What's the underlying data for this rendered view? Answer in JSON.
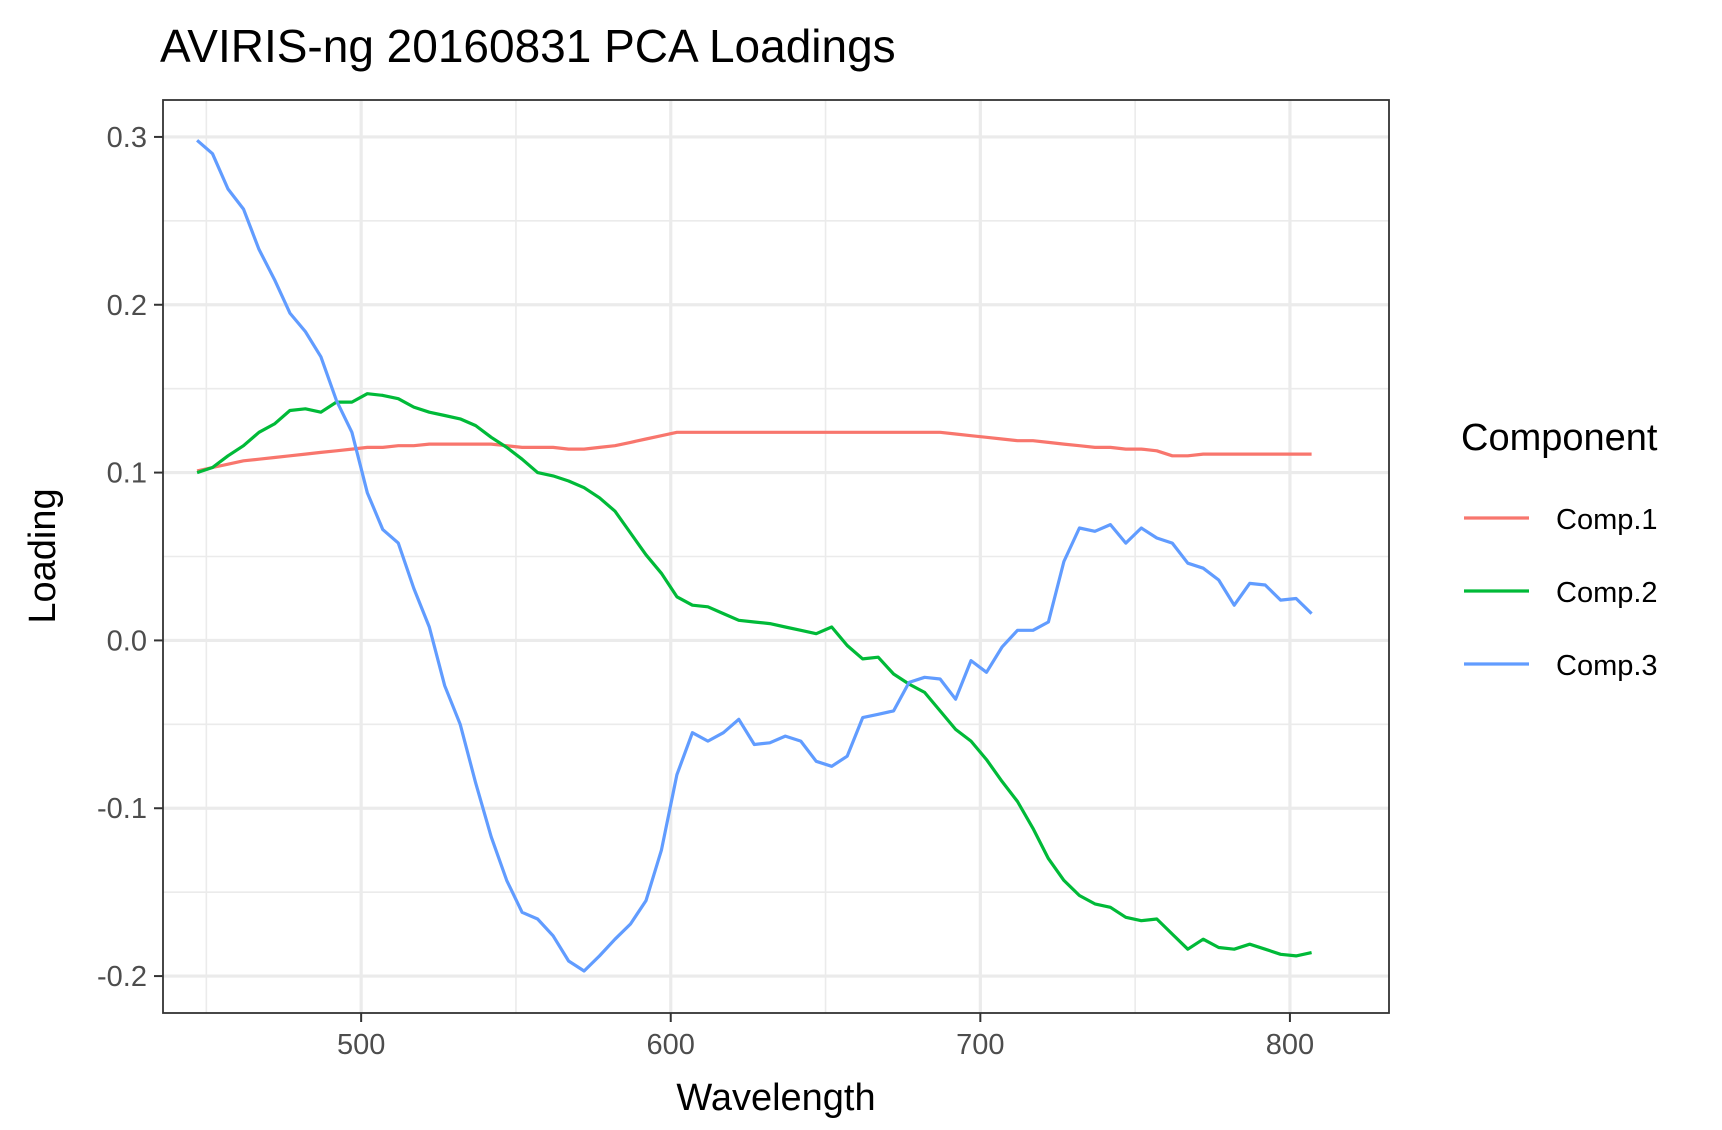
{
  "chart_data": {
    "type": "line",
    "title": "AVIRIS-ng 20160831 PCA Loadings",
    "xlabel": "Wavelength",
    "ylabel": "Loading",
    "xlim": [
      436,
      832
    ],
    "ylim": [
      -0.222,
      0.322
    ],
    "x_ticks": [
      500,
      600,
      700,
      800
    ],
    "x_tick_labels": [
      "500",
      "600",
      "700",
      "800"
    ],
    "x_minor_ticks": [
      450,
      550,
      650,
      750
    ],
    "y_ticks": [
      -0.2,
      -0.1,
      0.0,
      0.1,
      0.2,
      0.3
    ],
    "y_tick_labels": [
      "-0.2",
      "-0.1",
      "0.0",
      "0.1",
      "0.2",
      "0.3"
    ],
    "y_minor_ticks": [
      -0.15,
      -0.05,
      0.05,
      0.15,
      0.25
    ],
    "grid": true,
    "legend_title": "Component",
    "legend_position": "right",
    "series": [
      {
        "name": "Comp.1",
        "color": "#F8766D",
        "x": [
          447,
          452,
          457,
          462,
          467,
          472,
          477,
          482,
          487,
          492,
          497,
          502,
          507,
          512,
          517,
          522,
          527,
          532,
          537,
          542,
          547,
          552,
          557,
          562,
          567,
          572,
          577,
          582,
          587,
          592,
          597,
          602,
          607,
          612,
          617,
          622,
          627,
          632,
          637,
          642,
          647,
          652,
          657,
          662,
          667,
          672,
          677,
          682,
          687,
          692,
          697,
          702,
          707,
          712,
          717,
          722,
          727,
          732,
          737,
          742,
          747,
          752,
          757,
          762,
          767,
          772,
          777,
          782,
          787,
          792,
          797,
          802,
          807
        ],
        "values": [
          0.101,
          0.103,
          0.105,
          0.107,
          0.108,
          0.109,
          0.11,
          0.111,
          0.112,
          0.113,
          0.114,
          0.115,
          0.115,
          0.116,
          0.116,
          0.117,
          0.117,
          0.117,
          0.117,
          0.117,
          0.116,
          0.115,
          0.115,
          0.115,
          0.114,
          0.114,
          0.115,
          0.116,
          0.118,
          0.12,
          0.122,
          0.124,
          0.124,
          0.124,
          0.124,
          0.124,
          0.124,
          0.124,
          0.124,
          0.124,
          0.124,
          0.124,
          0.124,
          0.124,
          0.124,
          0.124,
          0.124,
          0.124,
          0.124,
          0.123,
          0.122,
          0.121,
          0.12,
          0.119,
          0.119,
          0.118,
          0.117,
          0.116,
          0.115,
          0.115,
          0.114,
          0.114,
          0.113,
          0.11,
          0.11,
          0.111,
          0.111,
          0.111,
          0.111,
          0.111,
          0.111,
          0.111,
          0.111
        ]
      },
      {
        "name": "Comp.2",
        "color": "#00BA38",
        "x": [
          447,
          452,
          457,
          462,
          467,
          472,
          477,
          482,
          487,
          492,
          497,
          502,
          507,
          512,
          517,
          522,
          527,
          532,
          537,
          542,
          547,
          552,
          557,
          562,
          567,
          572,
          577,
          582,
          587,
          592,
          597,
          602,
          607,
          612,
          617,
          622,
          627,
          632,
          637,
          642,
          647,
          652,
          657,
          662,
          667,
          672,
          677,
          682,
          687,
          692,
          697,
          702,
          707,
          712,
          717,
          722,
          727,
          732,
          737,
          742,
          747,
          752,
          757,
          762,
          767,
          772,
          777,
          782,
          787,
          792,
          797,
          802,
          807
        ],
        "values": [
          0.1,
          0.103,
          0.11,
          0.116,
          0.124,
          0.129,
          0.137,
          0.138,
          0.136,
          0.142,
          0.142,
          0.147,
          0.146,
          0.144,
          0.139,
          0.136,
          0.134,
          0.132,
          0.128,
          0.121,
          0.115,
          0.108,
          0.1,
          0.098,
          0.095,
          0.091,
          0.085,
          0.077,
          0.064,
          0.051,
          0.04,
          0.026,
          0.021,
          0.02,
          0.016,
          0.012,
          0.011,
          0.01,
          0.008,
          0.006,
          0.004,
          0.008,
          -0.003,
          -0.011,
          -0.01,
          -0.02,
          -0.026,
          -0.031,
          -0.042,
          -0.053,
          -0.06,
          -0.071,
          -0.084,
          -0.096,
          -0.112,
          -0.13,
          -0.143,
          -0.152,
          -0.157,
          -0.159,
          -0.165,
          -0.167,
          -0.166,
          -0.175,
          -0.184,
          -0.178,
          -0.183,
          -0.184,
          -0.181,
          -0.184,
          -0.187,
          -0.188,
          -0.186
        ]
      },
      {
        "name": "Comp.3",
        "color": "#619CFF",
        "x": [
          447,
          452,
          457,
          462,
          467,
          472,
          477,
          482,
          487,
          492,
          497,
          502,
          507,
          512,
          517,
          522,
          527,
          532,
          537,
          542,
          547,
          552,
          557,
          562,
          567,
          572,
          577,
          582,
          587,
          592,
          597,
          602,
          607,
          612,
          617,
          622,
          627,
          632,
          637,
          642,
          647,
          652,
          657,
          662,
          667,
          672,
          677,
          682,
          687,
          692,
          697,
          702,
          707,
          712,
          717,
          722,
          727,
          732,
          737,
          742,
          747,
          752,
          757,
          762,
          767,
          772,
          777,
          782,
          787,
          792,
          797,
          802,
          807
        ],
        "values": [
          0.298,
          0.29,
          0.269,
          0.257,
          0.233,
          0.215,
          0.195,
          0.184,
          0.169,
          0.143,
          0.124,
          0.088,
          0.066,
          0.058,
          0.031,
          0.008,
          -0.027,
          -0.05,
          -0.085,
          -0.117,
          -0.143,
          -0.162,
          -0.166,
          -0.176,
          -0.191,
          -0.197,
          -0.188,
          -0.178,
          -0.169,
          -0.155,
          -0.125,
          -0.08,
          -0.055,
          -0.06,
          -0.055,
          -0.047,
          -0.062,
          -0.061,
          -0.057,
          -0.06,
          -0.072,
          -0.075,
          -0.069,
          -0.046,
          -0.044,
          -0.042,
          -0.025,
          -0.022,
          -0.023,
          -0.035,
          -0.012,
          -0.019,
          -0.004,
          0.006,
          0.006,
          0.011,
          0.047,
          0.067,
          0.065,
          0.069,
          0.058,
          0.067,
          0.061,
          0.058,
          0.046,
          0.043,
          0.036,
          0.021,
          0.034,
          0.033,
          0.024,
          0.025,
          0.016
        ]
      }
    ]
  }
}
